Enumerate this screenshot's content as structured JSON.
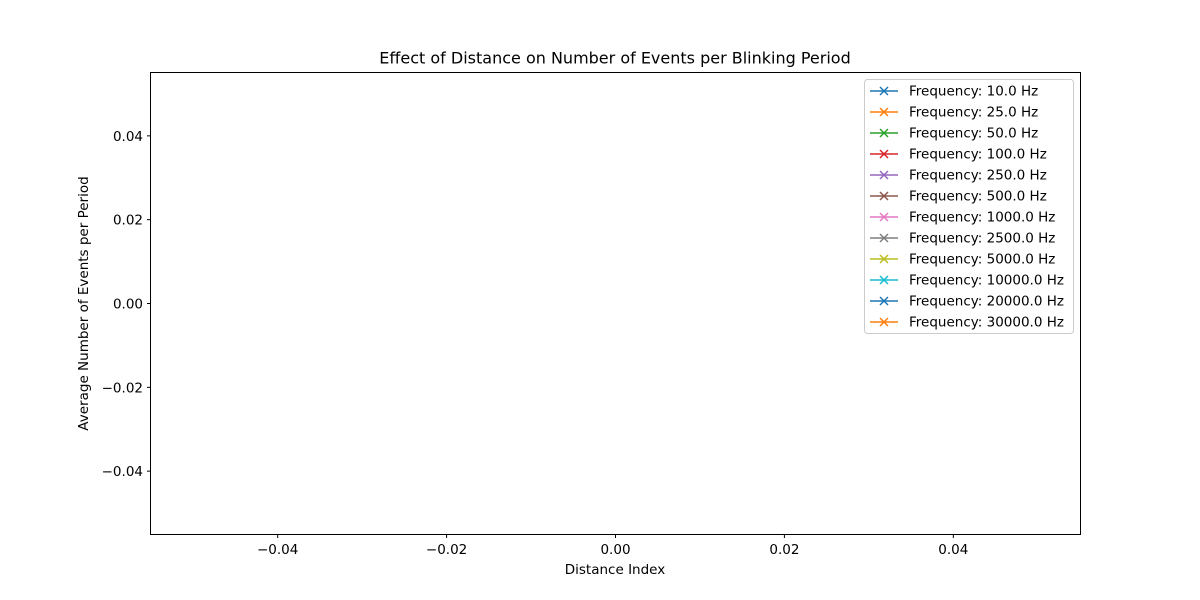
{
  "chart_data": {
    "type": "line",
    "title": "Effect of Distance on Number of Events per Blinking Period",
    "xlabel": "Distance Index",
    "ylabel": "Average Number of Events per Period",
    "xlim": [
      -0.055,
      0.055
    ],
    "ylim": [
      -0.055,
      0.055
    ],
    "xticks": [
      -0.04,
      -0.02,
      0.0,
      0.02,
      0.04
    ],
    "xtick_labels": [
      "−0.04",
      "−0.02",
      "0.00",
      "0.02",
      "0.04"
    ],
    "yticks": [
      0.04,
      0.02,
      0.0,
      -0.02,
      -0.04
    ],
    "ytick_labels": [
      "0.04",
      "0.02",
      "0.00",
      "−0.02",
      "−0.04"
    ],
    "grid": false,
    "legend_position": "top-right",
    "marker": "x",
    "series": [
      {
        "name": "Frequency: 10.0 Hz",
        "color": "#1f77b4",
        "x": [],
        "y": []
      },
      {
        "name": "Frequency: 25.0 Hz",
        "color": "#ff7f0e",
        "x": [],
        "y": []
      },
      {
        "name": "Frequency: 50.0 Hz",
        "color": "#2ca02c",
        "x": [],
        "y": []
      },
      {
        "name": "Frequency: 100.0 Hz",
        "color": "#d62728",
        "x": [],
        "y": []
      },
      {
        "name": "Frequency: 250.0 Hz",
        "color": "#9467bd",
        "x": [],
        "y": []
      },
      {
        "name": "Frequency: 500.0 Hz",
        "color": "#8c564b",
        "x": [],
        "y": []
      },
      {
        "name": "Frequency: 1000.0 Hz",
        "color": "#e377c2",
        "x": [],
        "y": []
      },
      {
        "name": "Frequency: 2500.0 Hz",
        "color": "#7f7f7f",
        "x": [],
        "y": []
      },
      {
        "name": "Frequency: 5000.0 Hz",
        "color": "#bcbd22",
        "x": [],
        "y": []
      },
      {
        "name": "Frequency: 10000.0 Hz",
        "color": "#17becf",
        "x": [],
        "y": []
      },
      {
        "name": "Frequency: 20000.0 Hz",
        "color": "#1f77b4",
        "x": [],
        "y": []
      },
      {
        "name": "Frequency: 30000.0 Hz",
        "color": "#ff7f0e",
        "x": [],
        "y": []
      }
    ]
  }
}
